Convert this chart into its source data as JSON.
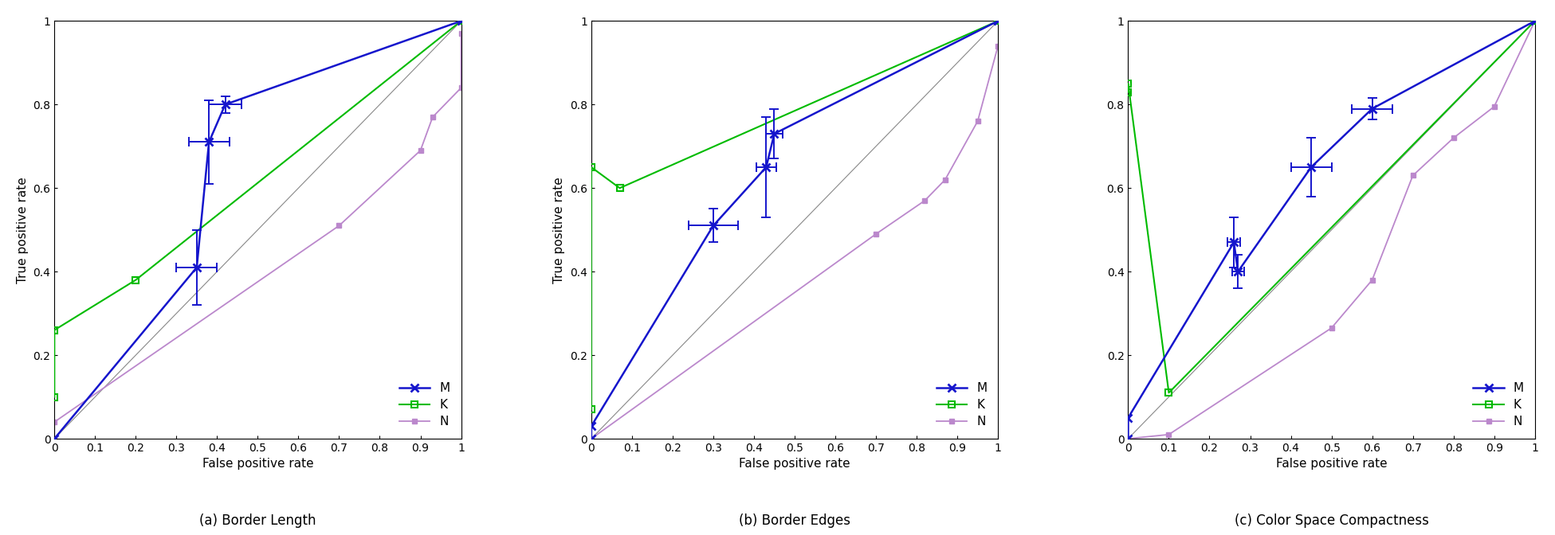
{
  "plots": [
    {
      "title": "(a) Border Length",
      "M": {
        "x": [
          0.0,
          0.35,
          0.38,
          0.42,
          1.0
        ],
        "y": [
          0.0,
          0.41,
          0.71,
          0.8,
          1.0
        ],
        "xerr": [
          0,
          0.05,
          0.05,
          0.04,
          0
        ],
        "yerr": [
          0,
          0.09,
          0.1,
          0.02,
          0
        ]
      },
      "K": {
        "x": [
          0.0,
          0.0,
          0.2,
          1.0
        ],
        "y": [
          0.1,
          0.26,
          0.38,
          1.0
        ]
      },
      "N": {
        "x": [
          0.0,
          0.0,
          0.7,
          0.9,
          0.93,
          1.0,
          1.0
        ],
        "y": [
          0.0,
          0.04,
          0.51,
          0.69,
          0.77,
          0.84,
          0.97
        ]
      }
    },
    {
      "title": "(b) Border Edges",
      "M": {
        "x": [
          0.0,
          0.0,
          0.3,
          0.43,
          0.45,
          1.0
        ],
        "y": [
          0.0,
          0.03,
          0.51,
          0.65,
          0.73,
          1.0
        ],
        "xerr": [
          0,
          0,
          0.06,
          0.025,
          0.02,
          0
        ],
        "yerr": [
          0,
          0,
          0.04,
          0.12,
          0.06,
          0
        ]
      },
      "K": {
        "x": [
          0.0,
          0.0,
          0.07,
          1.0
        ],
        "y": [
          0.07,
          0.65,
          0.6,
          1.0
        ]
      },
      "N": {
        "x": [
          0.0,
          0.7,
          0.82,
          0.87,
          0.95,
          1.0
        ],
        "y": [
          0.0,
          0.49,
          0.57,
          0.62,
          0.76,
          0.94
        ]
      }
    },
    {
      "title": "(c) Color Space Compactness",
      "M": {
        "x": [
          0.0,
          0.0,
          0.26,
          0.27,
          0.45,
          0.6,
          1.0
        ],
        "y": [
          0.0,
          0.05,
          0.47,
          0.4,
          0.65,
          0.79,
          1.0
        ],
        "xerr": [
          0,
          0,
          0.015,
          0.015,
          0.05,
          0.05,
          0
        ],
        "yerr": [
          0,
          0,
          0.06,
          0.04,
          0.07,
          0.025,
          0
        ]
      },
      "K": {
        "x": [
          0.0,
          0.0,
          0.1,
          1.0
        ],
        "y": [
          0.83,
          0.85,
          0.11,
          1.0
        ]
      },
      "N": {
        "x": [
          0.0,
          0.0,
          0.1,
          0.5,
          0.6,
          0.7,
          0.8,
          0.9,
          1.0
        ],
        "y": [
          0.0,
          0.0,
          0.01,
          0.265,
          0.38,
          0.63,
          0.72,
          0.795,
          1.0
        ]
      }
    }
  ],
  "colors": {
    "M": "#1515CC",
    "K": "#00BB00",
    "N": "#BB88CC"
  },
  "diagonal_color": "#888888",
  "xlabel": "False positive rate",
  "ylabel": "True positive rate",
  "xlim": [
    0,
    1
  ],
  "ylim": [
    0,
    1
  ],
  "xticks": [
    0,
    0.1,
    0.2,
    0.3,
    0.4,
    0.5,
    0.6,
    0.7,
    0.8,
    0.9,
    1
  ],
  "yticks": [
    0,
    0.2,
    0.4,
    0.6,
    0.8,
    1.0
  ],
  "tick_labels_x": [
    "0",
    "0.1",
    "0.2",
    "0.3",
    "0.4",
    "0.5",
    "0.6",
    "0.7",
    "0.8",
    "0.9",
    "1"
  ],
  "tick_labels_y": [
    "0",
    "0.2",
    "0.4",
    "0.6",
    "0.8",
    "1"
  ],
  "background_color": "#ffffff",
  "legend_loc": "lower right",
  "figsize": [
    19.51,
    6.72
  ],
  "dpi": 100
}
